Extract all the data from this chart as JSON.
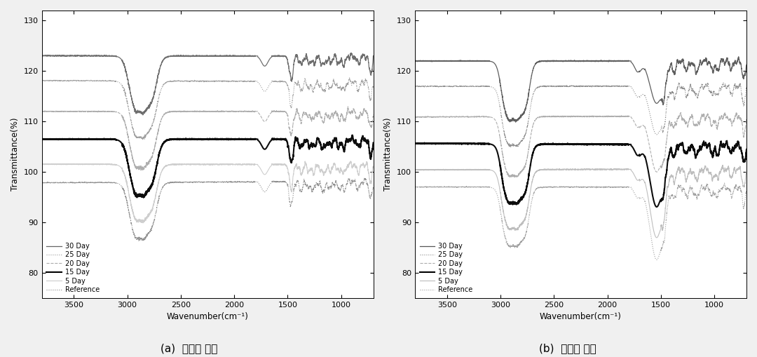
{
  "xlim": [
    3800,
    700
  ],
  "ylim": [
    75,
    132
  ],
  "yticks": [
    80,
    90,
    100,
    110,
    120,
    130
  ],
  "xticks": [
    3500,
    3000,
    2500,
    2000,
    1500,
    1000
  ],
  "ylabel": "Transmittance(%)",
  "xlabel": "Wavenumber(cm⁻¹)",
  "legend_labels": [
    "30 Day",
    "25 Day",
    "20 Day",
    "15 Day",
    "5 Day",
    "Reference"
  ],
  "legend_colors_a": [
    "#666666",
    "#999999",
    "#aaaaaa",
    "#000000",
    "#cccccc",
    "#888888"
  ],
  "legend_colors_b": [
    "#555555",
    "#888888",
    "#aaaaaa",
    "#000000",
    "#bbbbbb",
    "#999999"
  ],
  "legend_styles": [
    "-",
    ":",
    "--",
    "-",
    "-",
    ":"
  ],
  "legend_linewidths": [
    0.9,
    0.8,
    0.8,
    1.5,
    0.8,
    0.8
  ],
  "caption_a": "(a)  지지층 소재",
  "caption_b": "(b)  표면층 소재",
  "background_color": "#f0f0f0",
  "subplot_bg": "#ffffff",
  "baseline_offsets": [
    25,
    20,
    14,
    8.5,
    3.5,
    0
  ],
  "base_level_a": 98,
  "base_level_b": 97
}
